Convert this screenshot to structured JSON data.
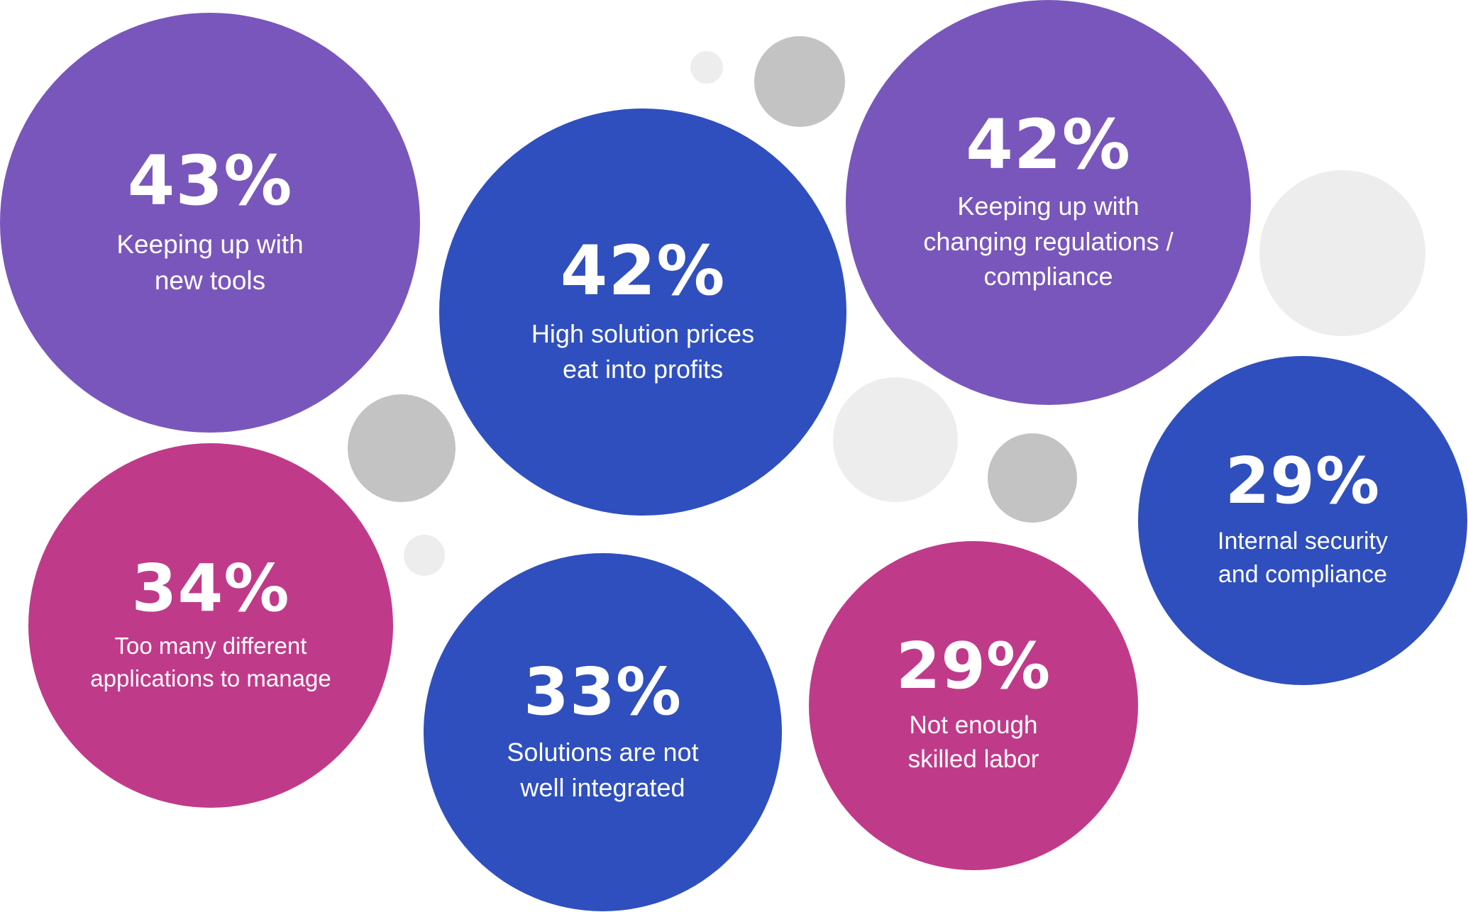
{
  "colors": {
    "purple": "#7956BB",
    "blue": "#2F4FBE",
    "magenta": "#C03A8A",
    "grey_dark": "#C3C3C3",
    "grey_light": "#EDEDED"
  },
  "chart_data": {
    "type": "bubble",
    "unit": "%",
    "items": [
      {
        "value": 43,
        "value_label": "43%",
        "label_lines": [
          "Keeping up with",
          "new tools"
        ],
        "color": "purple"
      },
      {
        "value": 42,
        "value_label": "42%",
        "label_lines": [
          "High solution prices",
          "eat into profits"
        ],
        "color": "blue"
      },
      {
        "value": 42,
        "value_label": "42%",
        "label_lines": [
          "Keeping up with",
          "changing regulations /",
          "compliance"
        ],
        "color": "purple"
      },
      {
        "value": 34,
        "value_label": "34%",
        "label_lines": [
          "Too many different",
          "applications to manage"
        ],
        "color": "magenta"
      },
      {
        "value": 33,
        "value_label": "33%",
        "label_lines": [
          "Solutions are not",
          "well integrated"
        ],
        "color": "blue"
      },
      {
        "value": 29,
        "value_label": "29%",
        "label_lines": [
          "Not enough",
          "skilled labor"
        ],
        "color": "magenta"
      },
      {
        "value": 29,
        "value_label": "29%",
        "label_lines": [
          "Internal security",
          "and compliance"
        ],
        "color": "blue"
      }
    ]
  }
}
